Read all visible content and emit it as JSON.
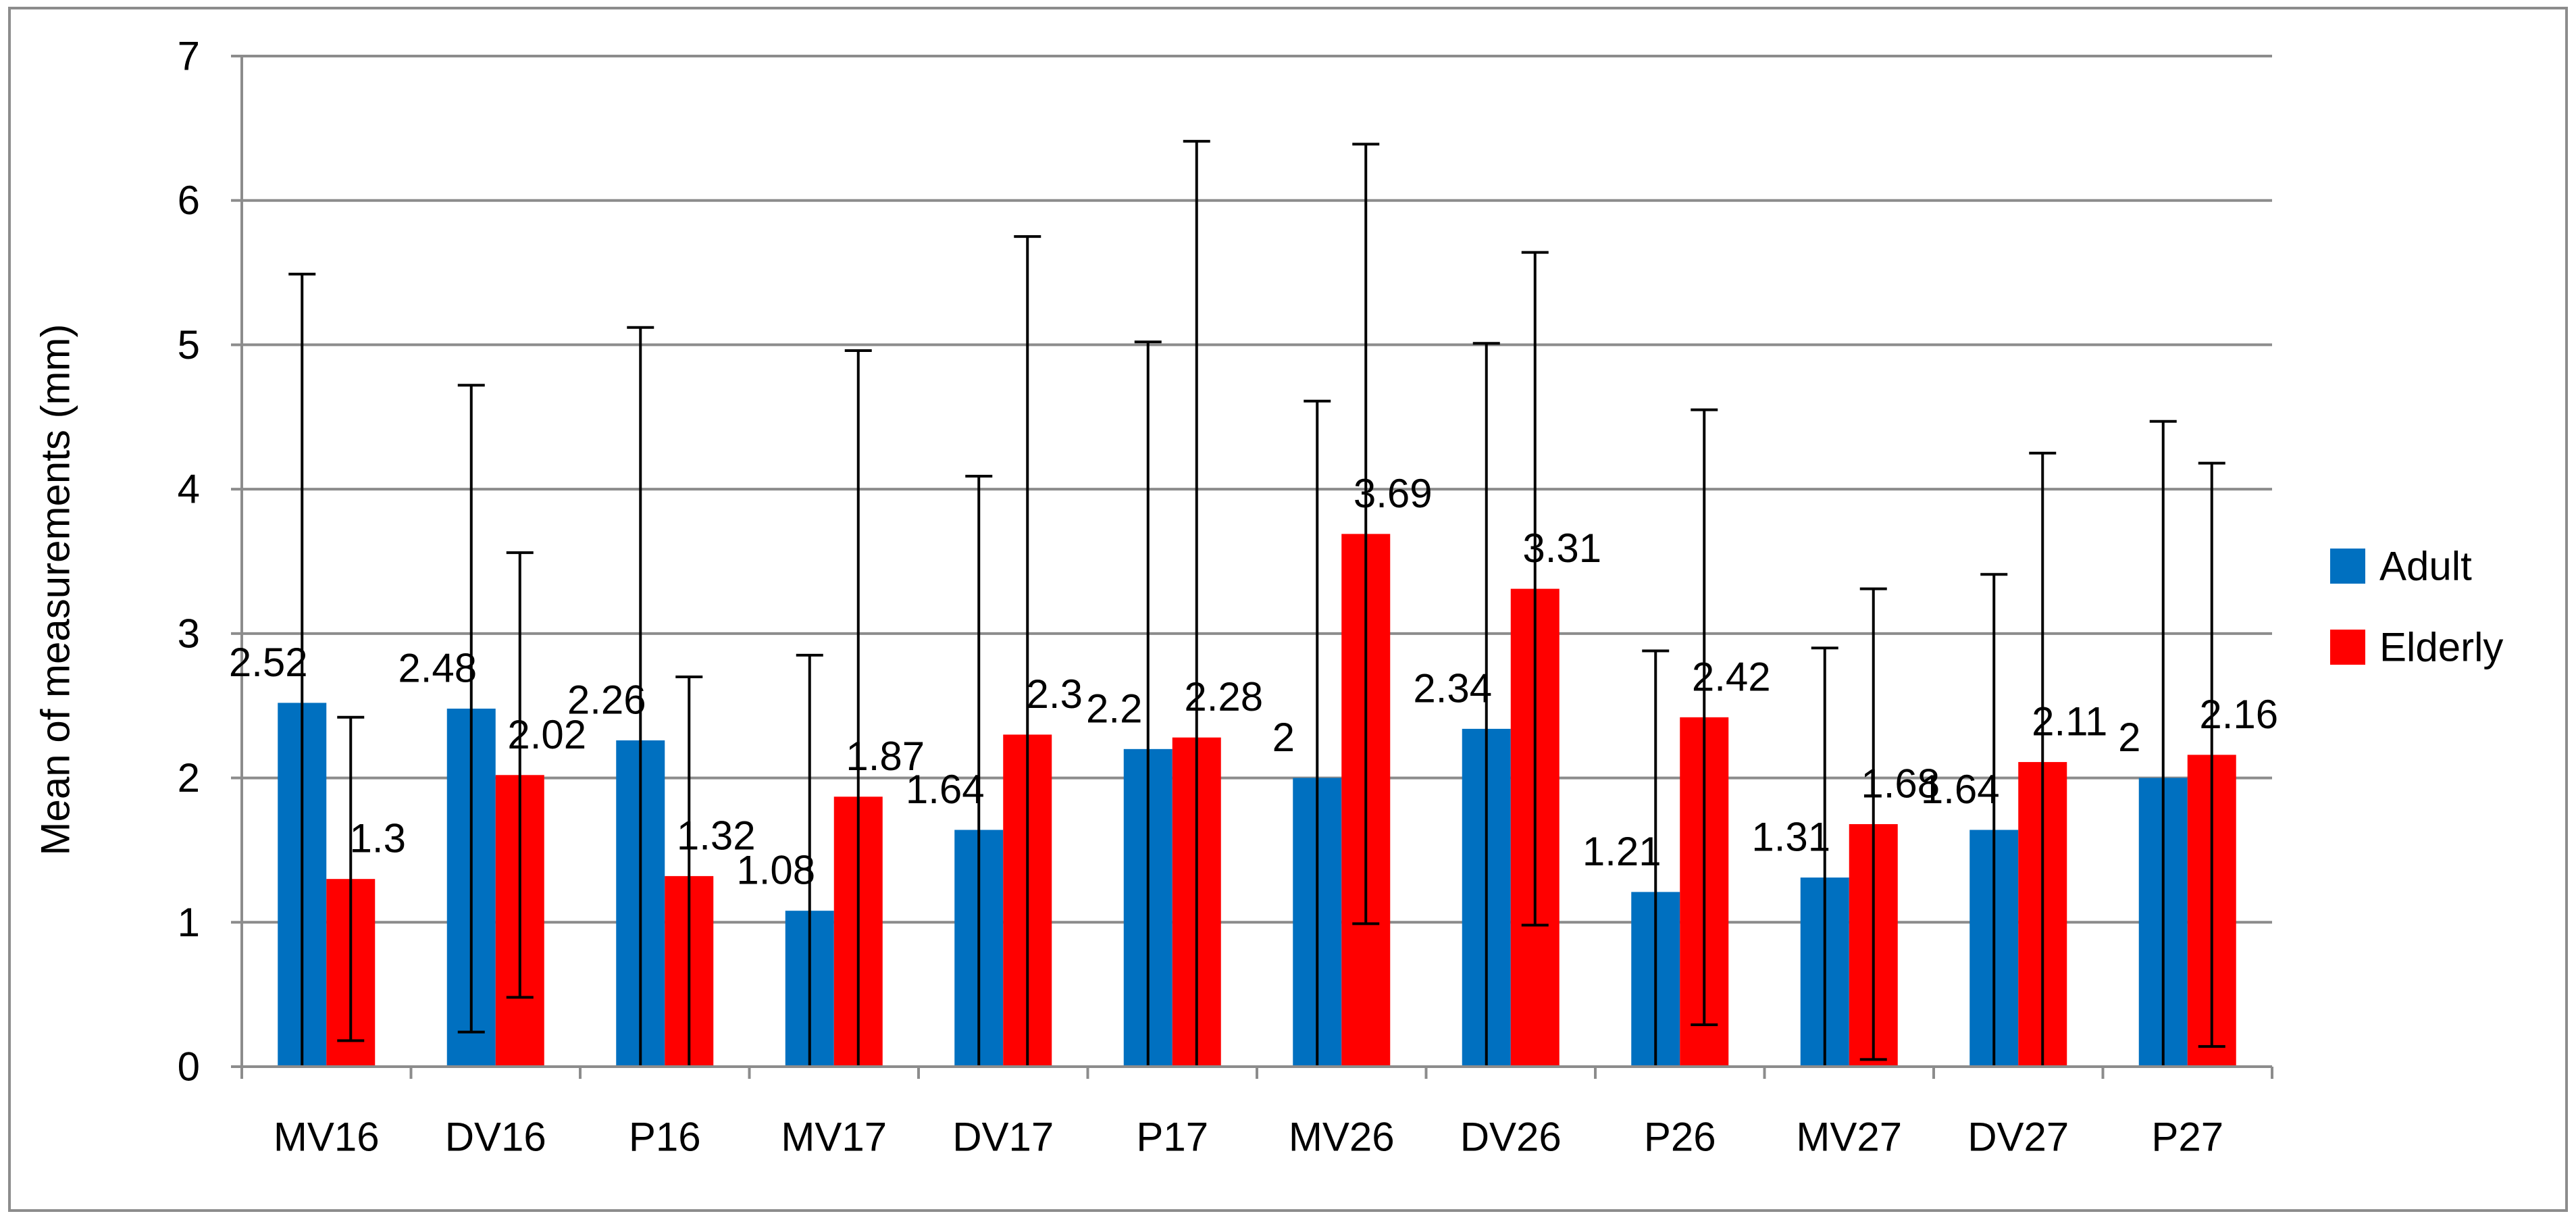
{
  "chart_data": {
    "type": "bar",
    "title": "",
    "xlabel": "",
    "ylabel": "Mean of measurements (mm)",
    "ylim": [
      0,
      7
    ],
    "yticks": [
      0,
      1,
      2,
      3,
      4,
      5,
      6,
      7
    ],
    "grid": true,
    "legend_position": "right",
    "categories": [
      "MV16",
      "DV16",
      "P16",
      "MV17",
      "DV17",
      "P17",
      "MV26",
      "DV26",
      "P26",
      "MV27",
      "DV27",
      "P27"
    ],
    "series": [
      {
        "name": "Adult",
        "color": "#0070C0",
        "values": [
          2.52,
          2.48,
          2.26,
          1.08,
          1.64,
          2.2,
          2,
          2.34,
          1.21,
          1.31,
          1.64,
          2
        ],
        "labels": [
          "2.52",
          "2.48",
          "2.26",
          "1.08",
          "1.64",
          "2.2",
          "2",
          "2.34",
          "1.21",
          "1.31",
          "1.64",
          "2"
        ],
        "error": [
          2.97,
          2.24,
          2.86,
          1.77,
          2.45,
          2.82,
          2.61,
          2.67,
          1.67,
          1.59,
          1.77,
          2.47
        ]
      },
      {
        "name": "Elderly",
        "color": "#FF0000",
        "values": [
          1.3,
          2.02,
          1.32,
          1.87,
          2.3,
          2.28,
          3.69,
          3.31,
          2.42,
          1.68,
          2.11,
          2.16
        ],
        "labels": [
          "1.3",
          "2.02",
          "1.32",
          "1.87",
          "2.3",
          "2.28",
          "3.69",
          "3.31",
          "2.42",
          "1.68",
          "2.11",
          "2.16"
        ],
        "error": [
          1.12,
          1.54,
          1.38,
          3.09,
          3.45,
          4.13,
          2.7,
          2.33,
          2.13,
          1.63,
          2.14,
          2.02
        ]
      }
    ]
  }
}
